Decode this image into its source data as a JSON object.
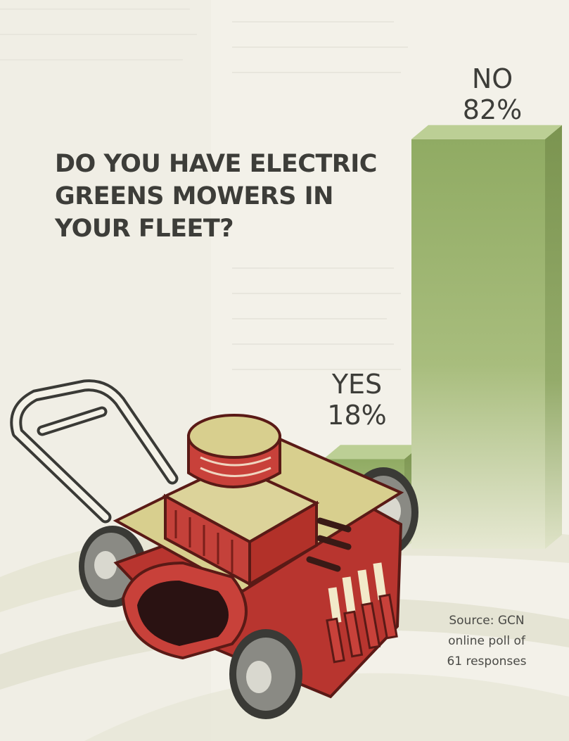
{
  "chart_data": {
    "type": "bar",
    "title": "DO YOU HAVE ELECTRIC GREENS MOWERS IN YOUR FLEET?",
    "title_lines": [
      "DO YOU HAVE ELECTRIC",
      "GREENS MOWERS IN",
      "YOUR FLEET?"
    ],
    "categories": [
      "YES",
      "NO"
    ],
    "values": [
      18,
      82
    ],
    "value_labels": [
      "18%",
      "82%"
    ],
    "unit": "%",
    "ylim": [
      0,
      100
    ],
    "grid": false,
    "legend": "none",
    "source_lines": [
      "Source: GCN",
      "online poll of",
      "61 responses"
    ]
  },
  "colors": {
    "bar_front": "#9cb36f",
    "bar_side": "#7d9652",
    "bar_top": "#bccf95",
    "background": "#f3f1e9",
    "text": "#3d3d39",
    "mower_red": "#c8413a",
    "mower_body": "#d8cf8e",
    "wheel": "#7f7f79"
  },
  "illustration": "lawn-mower-illustration"
}
